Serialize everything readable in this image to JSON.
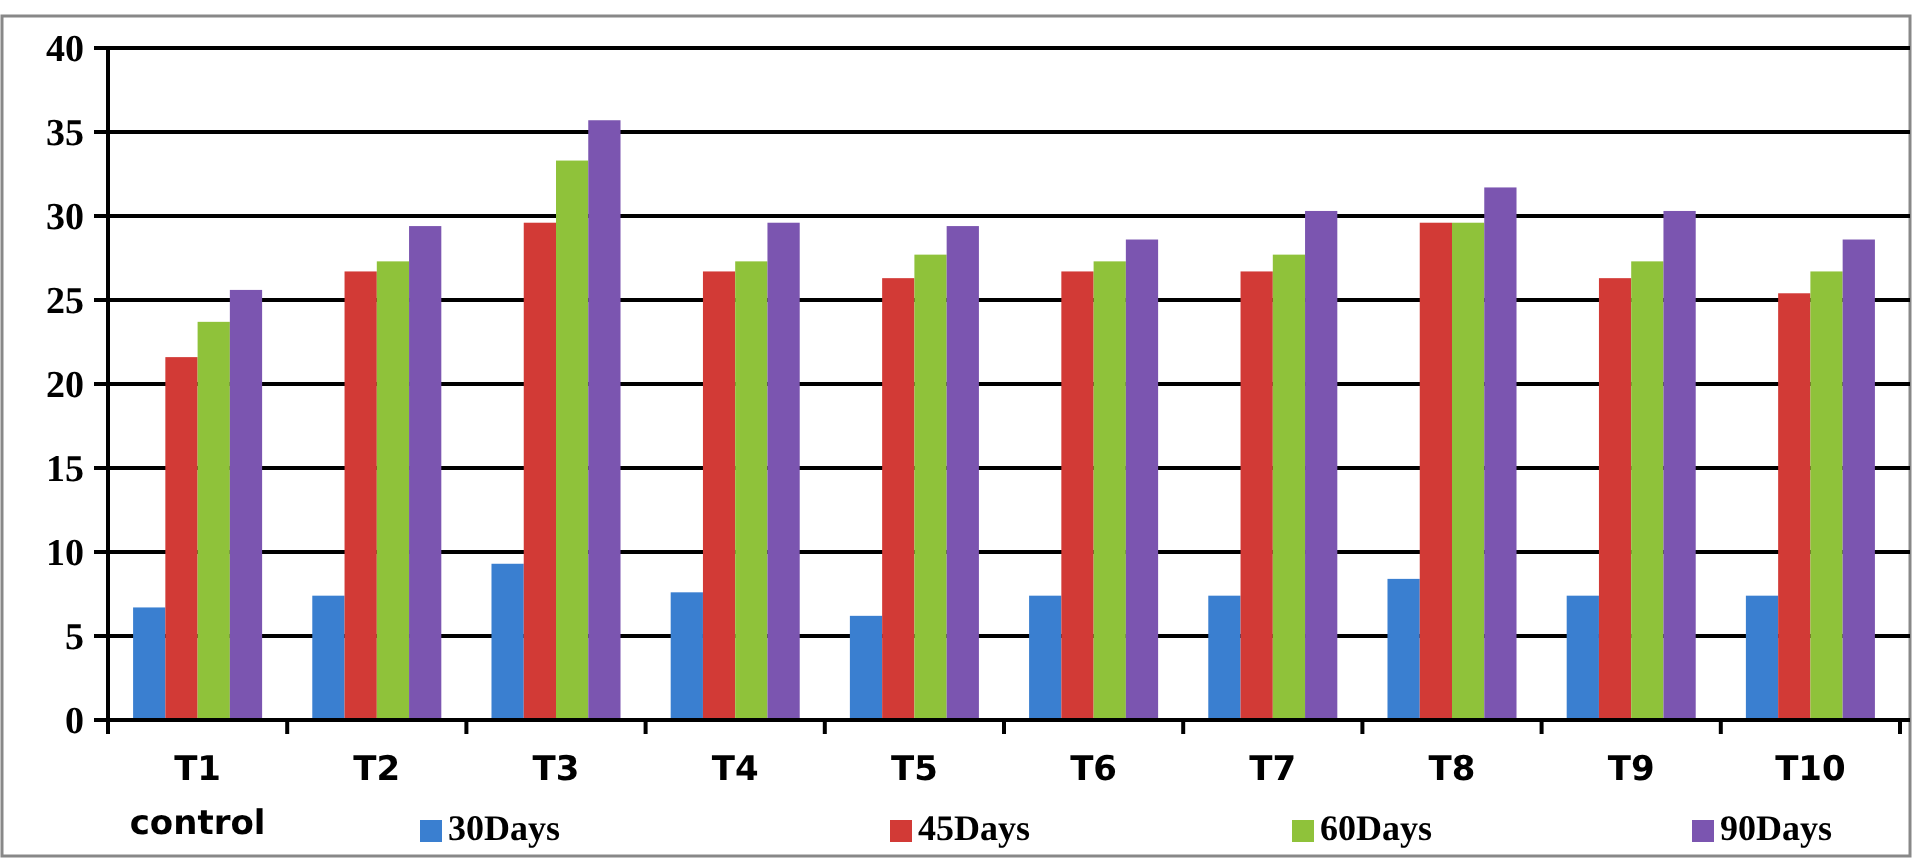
{
  "chart_data": {
    "type": "bar",
    "categories": [
      "T1\ncontrol",
      "T2",
      "T3",
      "T4",
      "T5",
      "T6",
      "T7",
      "T8",
      "T9",
      "T10"
    ],
    "series": [
      {
        "name": "30Days",
        "color": "#3a7fd0",
        "values": [
          6.7,
          7.4,
          9.3,
          7.6,
          6.2,
          7.4,
          7.4,
          8.4,
          7.4,
          7.4
        ]
      },
      {
        "name": "45Days",
        "color": "#d23a36",
        "values": [
          21.6,
          26.7,
          29.6,
          26.7,
          26.3,
          26.7,
          26.7,
          29.6,
          26.3,
          25.4
        ]
      },
      {
        "name": "60Days",
        "color": "#8fc23a",
        "values": [
          23.7,
          27.3,
          33.3,
          27.3,
          27.7,
          27.3,
          27.7,
          29.6,
          27.3,
          26.7
        ]
      },
      {
        "name": "90Days",
        "color": "#7b55b0",
        "values": [
          25.6,
          29.4,
          35.7,
          29.6,
          29.4,
          28.6,
          30.3,
          31.7,
          30.3,
          28.6
        ]
      }
    ],
    "ylim": [
      0,
      40
    ],
    "yticks": [
      0,
      5,
      10,
      15,
      20,
      25,
      30,
      35,
      40
    ],
    "grid": "y",
    "legend": "bottom"
  }
}
